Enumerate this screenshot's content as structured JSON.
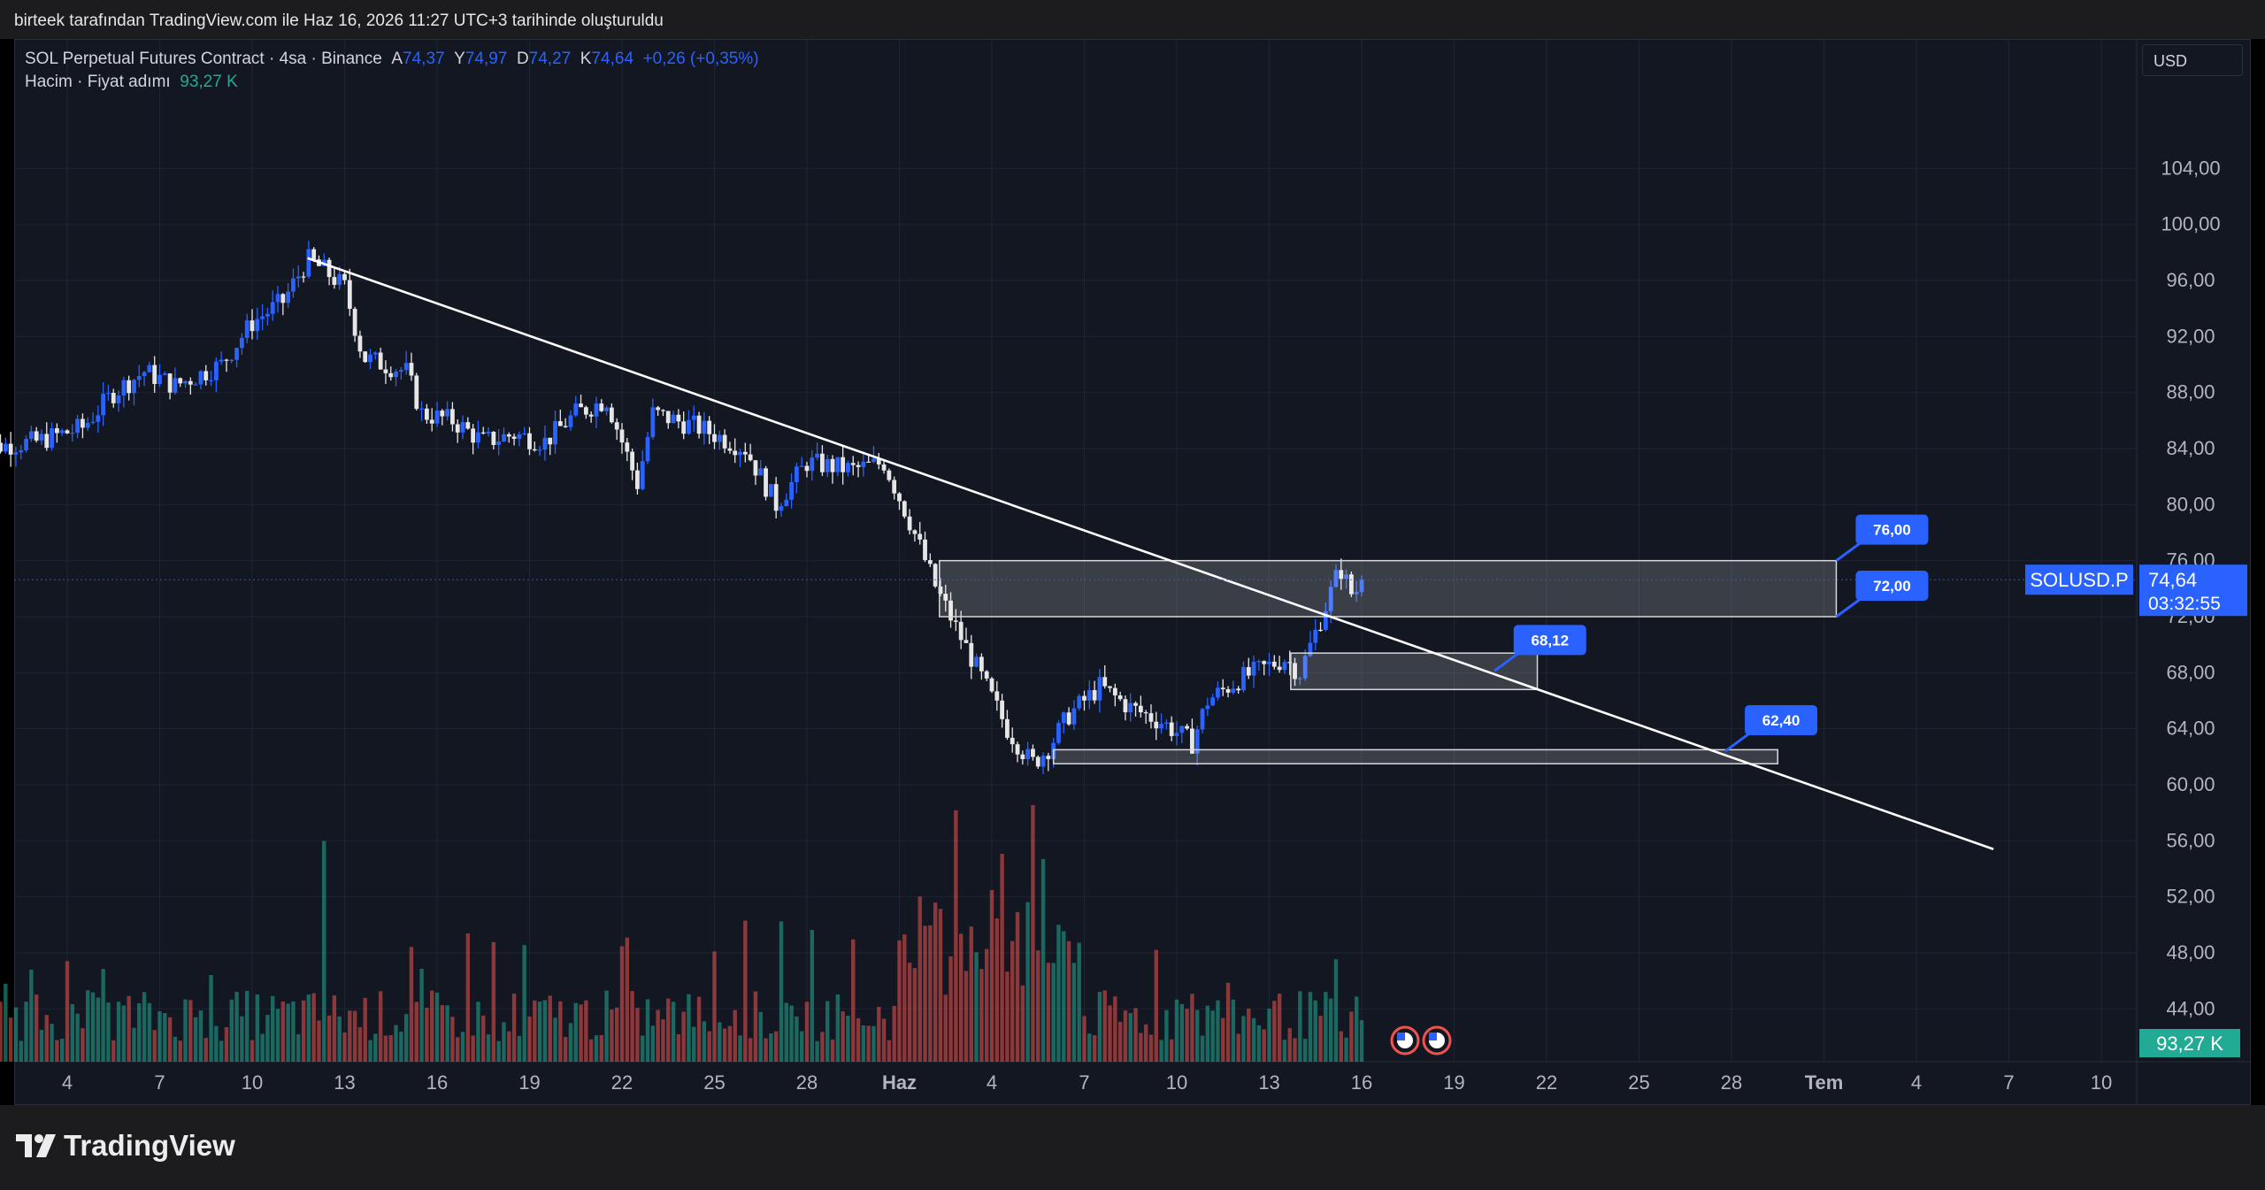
{
  "header": {
    "created_by": "birteek tarafından TradingView.com ile Haz 16, 2026 11:27 UTC+3 tarihinde oluşturuldu"
  },
  "legend": {
    "symbol": "SOL Perpetual Futures Contract · 4sa · Binance",
    "o_label": "A",
    "o": "74,37",
    "h_label": "Y",
    "h": "74,97",
    "l_label": "D",
    "l": "74,27",
    "c_label": "K",
    "c": "74,64",
    "change": "+0,26 (+0,35%)",
    "volume_label": "Hacim · Fiyat adımı",
    "volume_value": "93,27 K"
  },
  "currency_button": "USD",
  "symbol_tag": "SOLUSD.P",
  "last_price_label": "74,64",
  "countdown": "03:32:55",
  "volume_last_label": "93,27 K",
  "brand": "TradingView",
  "colors": {
    "up": "#2962ff",
    "down": "#e6e6e6",
    "vol_up": "#22ab94",
    "vol_down": "#ef5350",
    "callout": "#2962ff",
    "background": "#131722"
  },
  "chart_data": {
    "type": "candlestick",
    "ylim": [
      42.5,
      107.5
    ],
    "y_ticks": [
      44,
      48,
      52,
      56,
      60,
      64,
      68,
      72,
      76,
      80,
      84,
      88,
      92,
      96,
      100,
      104
    ],
    "y_tick_labels": [
      "44,00",
      "48,00",
      "52,00",
      "56,00",
      "60,00",
      "64,00",
      "68,00",
      "72,00",
      "76,00",
      "80,00",
      "84,00",
      "88,00",
      "92,00",
      "96,00",
      "100,00",
      "104,00"
    ],
    "x_domain_days": [
      0,
      67
    ],
    "x_ticks": [
      {
        "day": 3,
        "label": "4"
      },
      {
        "day": 6,
        "label": "7"
      },
      {
        "day": 9,
        "label": "10"
      },
      {
        "day": 12,
        "label": "13"
      },
      {
        "day": 15,
        "label": "16"
      },
      {
        "day": 18,
        "label": "19"
      },
      {
        "day": 21,
        "label": "22"
      },
      {
        "day": 24,
        "label": "25"
      },
      {
        "day": 27,
        "label": "28"
      },
      {
        "day": 30,
        "label": "Haz"
      },
      {
        "day": 33,
        "label": "4"
      },
      {
        "day": 36,
        "label": "7"
      },
      {
        "day": 39,
        "label": "10"
      },
      {
        "day": 42,
        "label": "13"
      },
      {
        "day": 45,
        "label": "16"
      },
      {
        "day": 48,
        "label": "19"
      },
      {
        "day": 51,
        "label": "22"
      },
      {
        "day": 54,
        "label": "25"
      },
      {
        "day": 57,
        "label": "28"
      },
      {
        "day": 60,
        "label": "Tem"
      },
      {
        "day": 63,
        "label": "4"
      },
      {
        "day": 66,
        "label": "7"
      },
      {
        "day": 69,
        "label": "10"
      }
    ],
    "price_path": [
      [
        0,
        84.0
      ],
      [
        2,
        84.5
      ],
      [
        3.5,
        85.5
      ],
      [
        4.5,
        88.0
      ],
      [
        5.5,
        89.5
      ],
      [
        6.5,
        88.5
      ],
      [
        8,
        90.0
      ],
      [
        9,
        93.0
      ],
      [
        10,
        94.5
      ],
      [
        10.8,
        97.5
      ],
      [
        11.3,
        96.8
      ],
      [
        12.0,
        95.5
      ],
      [
        12.6,
        90.5
      ],
      [
        13.3,
        90.0
      ],
      [
        14,
        89.5
      ],
      [
        14.5,
        86.5
      ],
      [
        15.5,
        86.0
      ],
      [
        16.5,
        84.5
      ],
      [
        17.5,
        85.0
      ],
      [
        18.5,
        84.5
      ],
      [
        19.5,
        86.5
      ],
      [
        20.5,
        87.5
      ],
      [
        21.5,
        81.5
      ],
      [
        22,
        86.5
      ],
      [
        23.5,
        85.5
      ],
      [
        25,
        84.0
      ],
      [
        26,
        80.0
      ],
      [
        27,
        83.0
      ],
      [
        28.5,
        82.5
      ],
      [
        29.5,
        83.0
      ],
      [
        30.3,
        79.0
      ],
      [
        31.2,
        74.0
      ],
      [
        32.0,
        70.5
      ],
      [
        32.7,
        67.5
      ],
      [
        33.5,
        64.0
      ],
      [
        34.3,
        61.5
      ],
      [
        34.8,
        62.5
      ],
      [
        35.5,
        65.0
      ],
      [
        36.5,
        67.0
      ],
      [
        37.5,
        65.5
      ],
      [
        38.5,
        64.5
      ],
      [
        39.5,
        63.0
      ],
      [
        40.0,
        66.0
      ],
      [
        41.0,
        67.5
      ],
      [
        42.0,
        68.5
      ],
      [
        42.5,
        69.0
      ],
      [
        43.0,
        68.0
      ],
      [
        43.7,
        72.0
      ],
      [
        44.3,
        75.5
      ],
      [
        44.7,
        73.5
      ],
      [
        45.1,
        74.64
      ]
    ],
    "volume": {
      "label": "Hacim",
      "last": 93270,
      "spikes": [
        {
          "day": 11.3,
          "rel": 0.86
        },
        {
          "day": 31.2,
          "rel": 0.62
        },
        {
          "day": 31.8,
          "rel": 0.98
        },
        {
          "day": 33.4,
          "rel": 0.81
        },
        {
          "day": 34.3,
          "rel": 1.0
        },
        {
          "day": 34.6,
          "rel": 0.79
        },
        {
          "day": 16.0,
          "rel": 0.5
        },
        {
          "day": 21.0,
          "rel": 0.45
        },
        {
          "day": 25.0,
          "rel": 0.55
        }
      ]
    },
    "trendline": {
      "from": {
        "day": 10.8,
        "price": 97.6
      },
      "to": {
        "day": 65.5,
        "price": 55.4
      }
    },
    "zones": [
      {
        "x0": 31.3,
        "x1": 60.4,
        "y0": 72.0,
        "y1": 76.0,
        "label_top": "76,00",
        "label_bottom": "72,00"
      },
      {
        "x0": 42.7,
        "x1": 50.7,
        "y0": 66.8,
        "y1": 69.4,
        "label": "68,12"
      },
      {
        "x0": 35.0,
        "x1": 58.5,
        "y0": 61.5,
        "y1": 62.5,
        "label": "62,40"
      }
    ],
    "callouts": [
      {
        "day": 60.4,
        "price": 76.0,
        "label": "76,00"
      },
      {
        "day": 60.4,
        "price": 72.0,
        "label": "72,00"
      },
      {
        "day": 49.3,
        "price": 68.12,
        "label": "68,12"
      },
      {
        "day": 56.8,
        "price": 62.4,
        "label": "62,40"
      }
    ],
    "last_price": 74.64
  }
}
